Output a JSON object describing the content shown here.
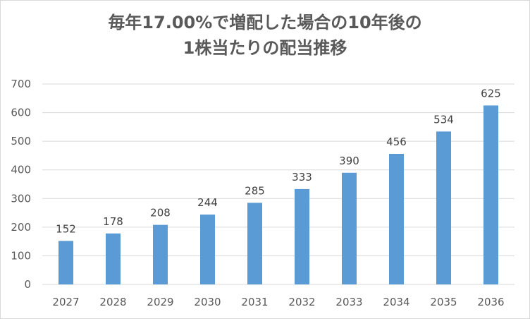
{
  "chart_data": {
    "type": "bar",
    "title_lines": [
      "毎年17.00%で増配した場合の10年後の",
      "1株当たりの配当推移"
    ],
    "categories": [
      "2027",
      "2028",
      "2029",
      "2030",
      "2031",
      "2032",
      "2033",
      "2034",
      "2035",
      "2036"
    ],
    "values": [
      152,
      178,
      208,
      244,
      285,
      333,
      390,
      456,
      534,
      625
    ],
    "ylim": [
      0,
      700
    ],
    "yticks": [
      0,
      100,
      200,
      300,
      400,
      500,
      600,
      700
    ],
    "grid": true,
    "legend": "none",
    "bar_color": "#5B9BD5",
    "grid_color": "#d9d9d9"
  }
}
